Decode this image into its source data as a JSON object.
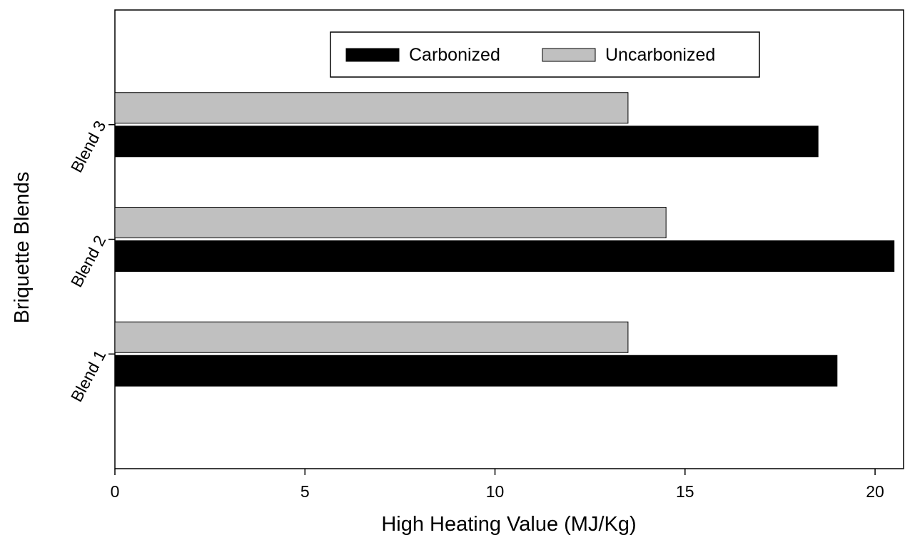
{
  "chart_data": {
    "type": "bar",
    "orientation": "horizontal",
    "title": "",
    "xlabel": "High Heating Value (MJ/Kg)",
    "ylabel": "Briquette Blends",
    "xlim": [
      0,
      20.75
    ],
    "x_ticks": [
      0,
      5,
      10,
      15,
      20
    ],
    "categories": [
      "Blend 1",
      "Blend 2",
      "Blend 3"
    ],
    "series": [
      {
        "name": "Carbonized",
        "values": [
          19.0,
          20.5,
          18.5
        ],
        "color": "#000000"
      },
      {
        "name": "Uncarbonized",
        "values": [
          13.5,
          14.5,
          13.5
        ],
        "color": "#c0c0c0"
      }
    ],
    "grid": false,
    "legend": {
      "position": "top-center"
    }
  }
}
